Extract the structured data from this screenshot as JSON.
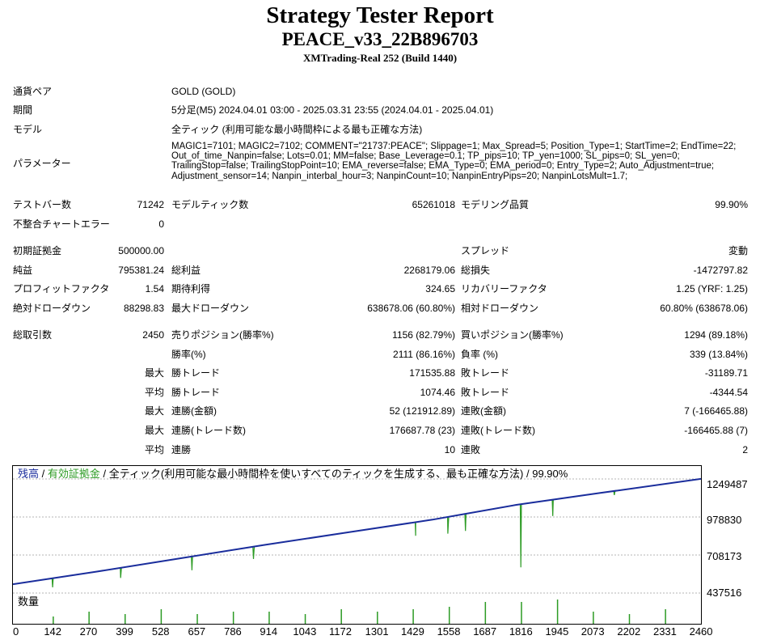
{
  "header": {
    "title": "Strategy Tester Report",
    "subtitle": "PEACE_v33_22B896703",
    "server": "XMTrading-Real 252 (Build 1440)"
  },
  "info": {
    "symbol_label": "通貨ペア",
    "symbol_value": "GOLD (GOLD)",
    "period_label": "期間",
    "period_value": "5分足(M5) 2024.04.01 03:00 - 2025.03.31 23:55 (2024.04.01 - 2025.04.01)",
    "model_label": "モデル",
    "model_value": "全ティック (利用可能な最小時間枠による最も正確な方法)",
    "params_label": "パラメーター",
    "params_value": "MAGIC1=7101; MAGIC2=7102; COMMENT=\"21737:PEACE\"; Slippage=1; Max_Spread=5; Position_Type=1; StartTime=2; EndTime=22; Out_of_time_Nanpin=false; Lots=0.01; MM=false; Base_Leverage=0.1; TP_pips=10; TP_yen=1000; SL_pips=0; SL_yen=0; TrailingStop=false; TrailingStopPoint=10; EMA_reverse=false; EMA_Type=0; EMA_period=0; Entry_Type=2; Auto_Adjustment=true; Adjustment_sensor=14; Nanpin_interbal_hour=3; NanpinCount=10; NanpinEntryPips=20; NanpinLotsMult=1.7;"
  },
  "rows": {
    "bars": {
      "l1": "テストバー数",
      "v1": "71242",
      "l2": "モデルティック数",
      "v2": "65261018",
      "l3": "モデリング品質",
      "v3": "99.90%"
    },
    "mismatch": {
      "l1": "不整合チャートエラー",
      "v1": "0"
    },
    "deposit": {
      "l1": "初期証拠金",
      "v1": "500000.00",
      "l3": "スプレッド",
      "v3": "変動"
    },
    "profit": {
      "l1": "純益",
      "v1": "795381.24",
      "l2": "総利益",
      "v2": "2268179.06",
      "l3": "総損失",
      "v3": "-1472797.82"
    },
    "factor": {
      "l1": "プロフィットファクタ",
      "v1": "1.54",
      "l2": "期待利得",
      "v2": "324.65",
      "l3": "リカバリーファクタ",
      "v3": "1.25 (YRF: 1.25)"
    },
    "drawdown": {
      "l1": "絶対ドローダウン",
      "v1": "88298.83",
      "l2": "最大ドローダウン",
      "v2": "638678.06 (60.80%)",
      "l3": "相対ドローダウン",
      "v3": "60.80% (638678.06)"
    },
    "trades": {
      "l1": "総取引数",
      "v1": "2450",
      "l2": "売りポジション(勝率%)",
      "v2": "1156 (82.79%)",
      "l3": "買いポジション(勝率%)",
      "v3": "1294 (89.18%)"
    },
    "winrate": {
      "l2": "勝率(%)",
      "v2": "2111 (86.16%)",
      "l3": "負率 (%)",
      "v3": "339 (13.84%)"
    },
    "largest": {
      "pre": "最大",
      "l2": "勝トレード",
      "v2": "171535.88",
      "l3": "敗トレード",
      "v3": "-31189.71"
    },
    "average": {
      "pre": "平均",
      "l2": "勝トレード",
      "v2": "1074.46",
      "l3": "敗トレード",
      "v3": "-4344.54"
    },
    "maxcons": {
      "pre": "最大",
      "l2": "連勝(金額)",
      "v2": "52 (121912.89)",
      "l3": "連敗(金額)",
      "v3": "7 (-166465.88)"
    },
    "maxconsprofit": {
      "pre": "最大",
      "l2": "連勝(トレード数)",
      "v2": "176687.78 (23)",
      "l3": "連敗(トレード数)",
      "v3": "-166465.88 (7)"
    },
    "avgcons": {
      "pre": "平均",
      "l2": "連勝",
      "v2": "10",
      "l3": "連敗",
      "v3": "2"
    }
  },
  "chart": {
    "legend_balance": "残高",
    "legend_sep": " / ",
    "legend_equity": "有効証拠金",
    "legend_rest": " / 全ティック(利用可能な最小時間枠を使いすべてのティックを生成する、最も正確な方法) / 99.90%",
    "volume_label": "数量",
    "colors": {
      "balance": "#1a2d9c",
      "equity": "#2c9b24",
      "grid": "#b5b5b5"
    }
  },
  "chart_data": {
    "type": "line",
    "x_range": [
      0,
      2460
    ],
    "ylim": [
      437516,
      1249487
    ],
    "yticks": [
      "1249487",
      "978830",
      "708173",
      "437516"
    ],
    "xticks": [
      "0",
      "142",
      "270",
      "399",
      "528",
      "657",
      "786",
      "914",
      "1043",
      "1172",
      "1301",
      "1429",
      "1558",
      "1687",
      "1816",
      "1945",
      "2073",
      "2202",
      "2331",
      "2460"
    ],
    "series": [
      {
        "name": "残高",
        "x": [
          0,
          300,
          600,
          900,
          1200,
          1500,
          1800,
          2100,
          2460
        ],
        "values": [
          500000,
          590000,
          685000,
          780000,
          870000,
          960000,
          1065000,
          1150000,
          1250000
        ]
      },
      {
        "name": "有効証拠金",
        "dips": [
          [
            142,
            478000
          ],
          [
            385,
            545000
          ],
          [
            640,
            600000
          ],
          [
            860,
            680000
          ],
          [
            1440,
            845000
          ],
          [
            1555,
            860000
          ],
          [
            1618,
            880000
          ],
          [
            1816,
            620000
          ],
          [
            1930,
            985000
          ],
          [
            2150,
            1135000
          ]
        ]
      }
    ],
    "volume": {
      "x": [
        142,
        270,
        399,
        528,
        657,
        786,
        914,
        1043,
        1172,
        1301,
        1429,
        1558,
        1687,
        1816,
        1945,
        2073,
        2202,
        2331
      ],
      "values": [
        0.3,
        0.5,
        0.4,
        0.6,
        0.4,
        0.5,
        0.5,
        0.4,
        0.6,
        0.5,
        0.6,
        0.7,
        0.9,
        0.9,
        1.0,
        0.5,
        0.4,
        0.6
      ]
    }
  }
}
